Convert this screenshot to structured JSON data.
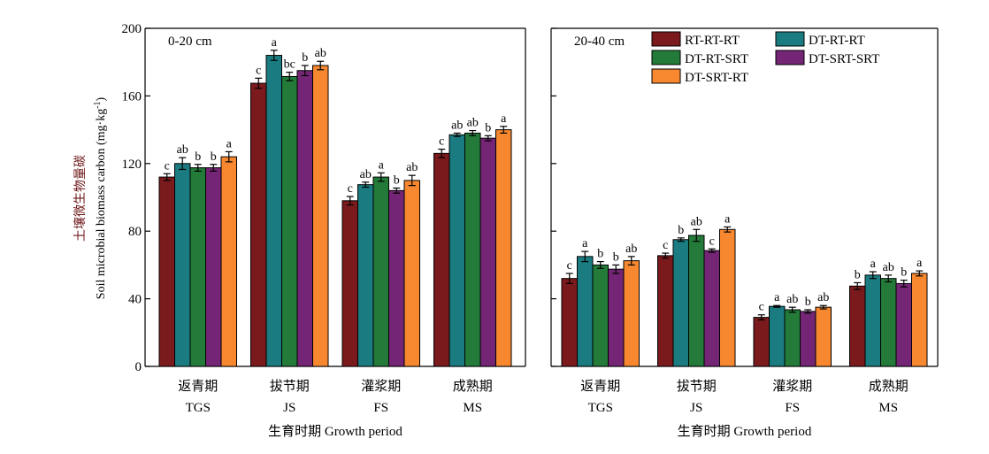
{
  "chart_data": {
    "type": "bar",
    "ylabel_cn": "土壤微生物量碳",
    "ylabel_en": "Soil microbial biomass carbon (mg·kg",
    "ylabel_sup": "-1",
    "ylabel_close": ")",
    "ylim": [
      0,
      200
    ],
    "yticks": [
      "0",
      "40",
      "80",
      "120",
      "160",
      "200"
    ],
    "error_bars": true,
    "legend": {
      "placement": "top-right",
      "entries": [
        {
          "name": "RT-RT-RT",
          "color": "#7a1a1c"
        },
        {
          "name": "DT-RT-RT",
          "color": "#1a7b80"
        },
        {
          "name": "DT-RT-SRT",
          "color": "#237a39"
        },
        {
          "name": "DT-SRT-SRT",
          "color": "#742575"
        },
        {
          "name": "DT-SRT-RT",
          "color": "#f7882f"
        }
      ]
    },
    "series_names": [
      "RT-RT-RT",
      "DT-RT-RT",
      "DT-RT-SRT",
      "DT-SRT-SRT",
      "DT-SRT-RT"
    ],
    "colors": [
      "#7a1a1c",
      "#1a7b80",
      "#237a39",
      "#742575",
      "#f7882f"
    ],
    "panels": [
      {
        "label": "0-20 cm",
        "xlabel": "生育时期 Growth period",
        "categories_cn": [
          "返青期",
          "拔节期",
          "灌浆期",
          "成熟期"
        ],
        "categories_en": [
          "TGS",
          "JS",
          "FS",
          "MS"
        ],
        "values": [
          [
            112,
            120,
            117.5,
            117.5,
            124
          ],
          [
            167.5,
            184,
            171.5,
            175,
            178
          ],
          [
            98,
            107.5,
            112,
            104,
            110
          ],
          [
            126,
            137,
            138,
            135,
            140
          ]
        ],
        "errors": [
          [
            2,
            3.5,
            2,
            2,
            3
          ],
          [
            3,
            3,
            2.5,
            3,
            2.5
          ],
          [
            2.5,
            1.5,
            2.5,
            1.5,
            3
          ],
          [
            2.5,
            1,
            1.5,
            1.5,
            2
          ]
        ],
        "letters": [
          [
            "c",
            "ab",
            "b",
            "b",
            "a"
          ],
          [
            "c",
            "a",
            "bc",
            "b",
            "ab"
          ],
          [
            "c",
            "ab",
            "a",
            "b",
            "ab"
          ],
          [
            "c",
            "ab",
            "ab",
            "b",
            "a"
          ]
        ]
      },
      {
        "label": "20-40 cm",
        "xlabel": "生育时期 Growth period",
        "categories_cn": [
          "返青期",
          "拔节期",
          "灌浆期",
          "成熟期"
        ],
        "categories_en": [
          "TGS",
          "JS",
          "FS",
          "MS"
        ],
        "values": [
          [
            52,
            65,
            60,
            57.5,
            62.5
          ],
          [
            65.5,
            75,
            77.5,
            68.5,
            81
          ],
          [
            29,
            35.5,
            33.5,
            32.5,
            35
          ],
          [
            47.5,
            54,
            52,
            49,
            55
          ]
        ],
        "errors": [
          [
            3,
            3,
            2,
            2.5,
            2.5
          ],
          [
            1.5,
            1,
            3.5,
            1,
            1.5
          ],
          [
            1.5,
            0.5,
            1.5,
            1,
            1
          ],
          [
            2,
            2,
            2,
            2,
            1.5
          ]
        ],
        "letters": [
          [
            "c",
            "a",
            "b",
            "b",
            "ab"
          ],
          [
            "c",
            "b",
            "ab",
            "c",
            "a"
          ],
          [
            "c",
            "a",
            "ab",
            "b",
            "ab"
          ],
          [
            "b",
            "a",
            "ab",
            "b",
            "a"
          ]
        ]
      }
    ]
  }
}
